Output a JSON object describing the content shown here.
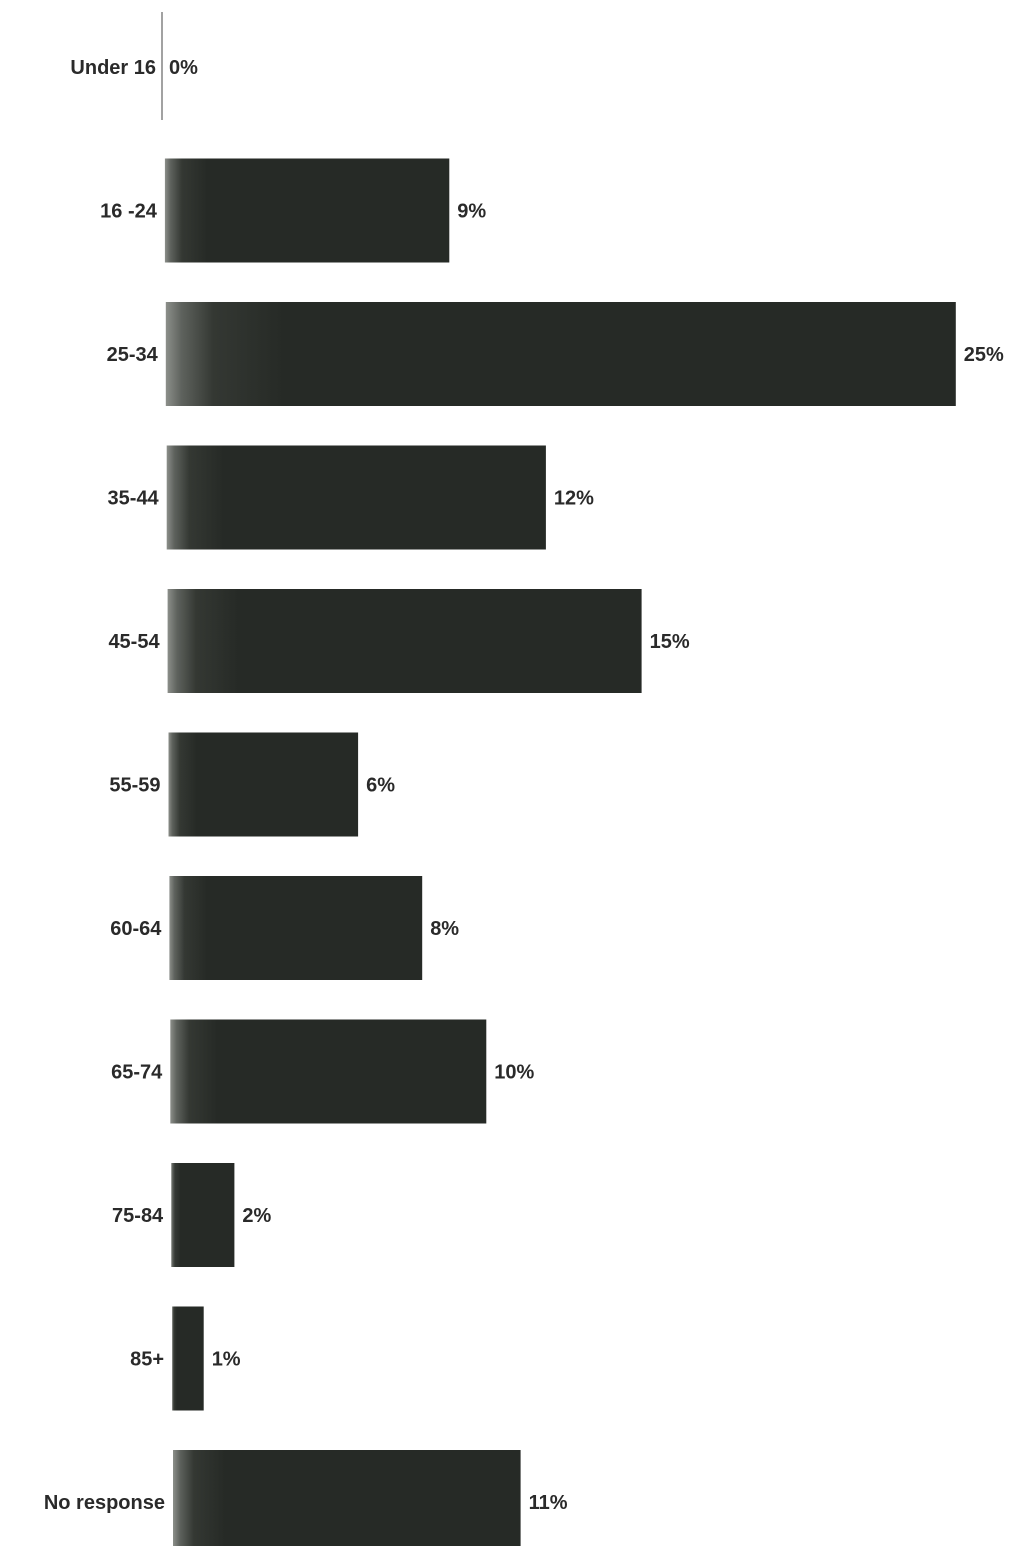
{
  "chart_data": {
    "type": "bar",
    "orientation": "horizontal",
    "categories": [
      "Under 16",
      "16 -24",
      "25-34",
      "35-44",
      "45-54",
      "55-59",
      "60-64",
      "65-74",
      "75-84",
      "85+",
      "No response"
    ],
    "values": [
      0,
      9,
      25,
      12,
      15,
      6,
      8,
      10,
      2,
      1,
      11
    ],
    "value_labels": [
      "0%",
      "9%",
      "25%",
      "12%",
      "15%",
      "6%",
      "8%",
      "10%",
      "2%",
      "1%",
      "11%"
    ],
    "unit": "%",
    "title": "",
    "xlabel": "",
    "ylabel": "",
    "xlim": [
      0,
      25
    ],
    "grid": false,
    "legend": "none",
    "bar_color": "#262a26"
  }
}
